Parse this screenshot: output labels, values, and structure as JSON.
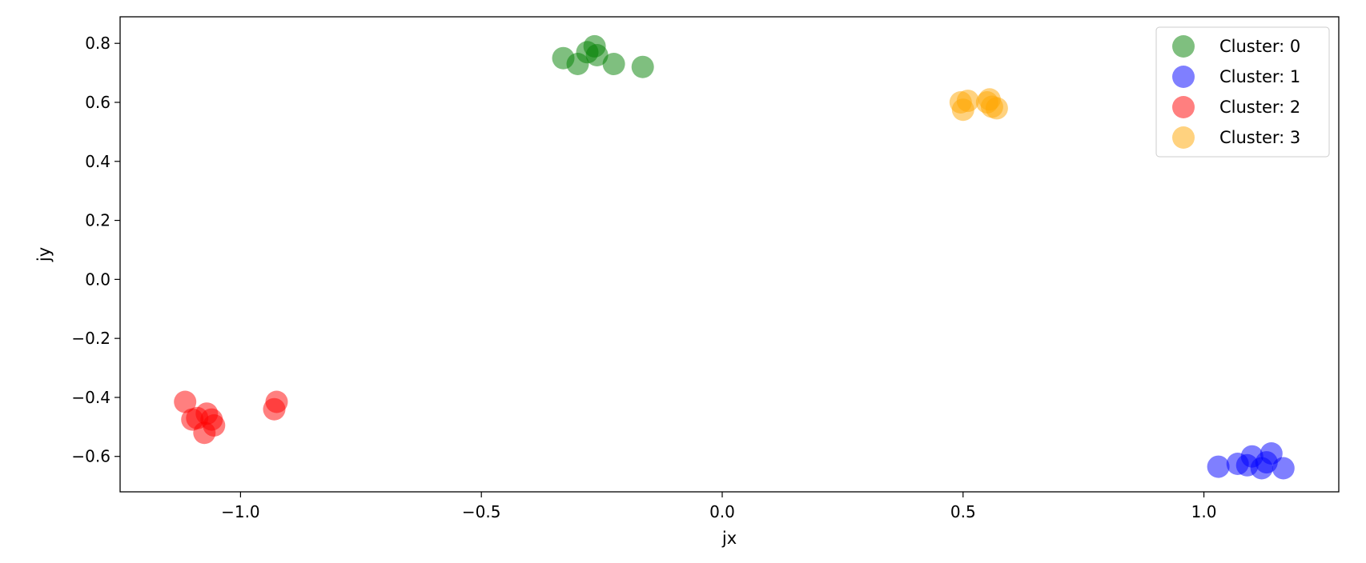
{
  "chart_data": {
    "type": "scatter",
    "title": "",
    "xlabel": "jx",
    "ylabel": "jy",
    "xlim": [
      -1.25,
      1.28
    ],
    "ylim": [
      -0.72,
      0.89
    ],
    "x_ticks": [
      -1.0,
      -0.5,
      0.0,
      0.5,
      1.0
    ],
    "x_tick_labels": [
      "−1.0",
      "−0.5",
      "0.0",
      "0.5",
      "1.0"
    ],
    "y_ticks": [
      0.8,
      0.6,
      0.4,
      0.2,
      0.0,
      -0.2,
      -0.4,
      -0.6
    ],
    "y_tick_labels": [
      "0.8",
      "0.6",
      "0.4",
      "0.2",
      "0.0",
      "−0.2",
      "−0.4",
      "−0.6"
    ],
    "grid": false,
    "legend_position": "top-right",
    "marker_alpha": 0.5,
    "series": [
      {
        "name": "Cluster: 0",
        "color": "#008000",
        "points": [
          [
            -0.33,
            0.75
          ],
          [
            -0.3,
            0.73
          ],
          [
            -0.28,
            0.77
          ],
          [
            -0.265,
            0.79
          ],
          [
            -0.26,
            0.76
          ],
          [
            -0.225,
            0.73
          ],
          [
            -0.165,
            0.72
          ]
        ]
      },
      {
        "name": "Cluster: 1",
        "color": "#0000ff",
        "points": [
          [
            1.03,
            -0.635
          ],
          [
            1.07,
            -0.625
          ],
          [
            1.09,
            -0.63
          ],
          [
            1.1,
            -0.6
          ],
          [
            1.12,
            -0.64
          ],
          [
            1.13,
            -0.62
          ],
          [
            1.14,
            -0.59
          ],
          [
            1.165,
            -0.64
          ]
        ]
      },
      {
        "name": "Cluster: 2",
        "color": "#ff0000",
        "points": [
          [
            -1.115,
            -0.415
          ],
          [
            -1.1,
            -0.475
          ],
          [
            -1.09,
            -0.47
          ],
          [
            -1.075,
            -0.52
          ],
          [
            -1.07,
            -0.455
          ],
          [
            -1.06,
            -0.475
          ],
          [
            -1.055,
            -0.495
          ],
          [
            -0.93,
            -0.44
          ],
          [
            -0.925,
            -0.415
          ]
        ]
      },
      {
        "name": "Cluster: 3",
        "color": "#ffa500",
        "points": [
          [
            0.495,
            0.6
          ],
          [
            0.5,
            0.575
          ],
          [
            0.51,
            0.605
          ],
          [
            0.55,
            0.6
          ],
          [
            0.555,
            0.61
          ],
          [
            0.56,
            0.585
          ],
          [
            0.57,
            0.58
          ]
        ]
      }
    ]
  }
}
